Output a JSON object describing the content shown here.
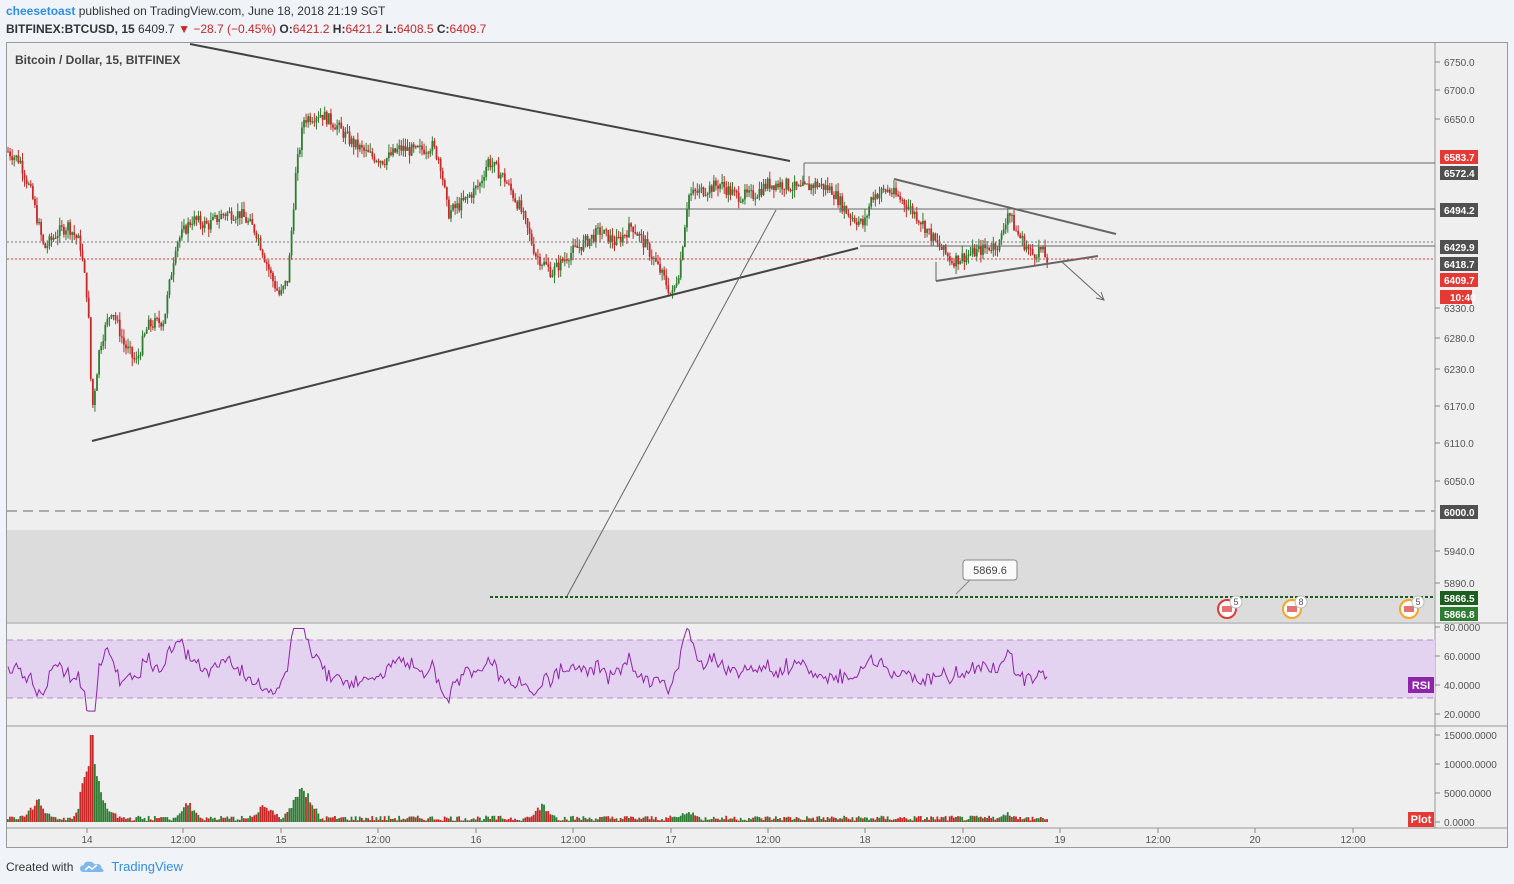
{
  "header": {
    "user": "cheesetoast",
    "published_text": "published on TradingView.com, June 18, 2018 21:19 SGT",
    "symbol": "BITFINEX:BTCUSD, 15",
    "last": "6409.7",
    "change": "−28.7 (−0.45%)",
    "o_label": "O:",
    "o_value": "6421.2",
    "h_label": "H:",
    "h_value": "6421.2",
    "l_label": "L:",
    "l_value": "6408.5",
    "c_label": "C:",
    "c_value": "6409.7"
  },
  "chart_title": "Bitcoin / Dollar, 15, BITFINEX",
  "colors": {
    "up": "#2e7d32",
    "down": "#c62828",
    "rsi": "#8e24aa",
    "rsi_band": "#e3d2f0",
    "zone": "#dcdcdc"
  },
  "chart_data": [
    {
      "type": "candlestick",
      "title": "Bitcoin / Dollar, 15, BITFINEX",
      "x_ticks": [
        "14",
        "12:00",
        "15",
        "12:00",
        "16",
        "12:00",
        "17",
        "12:00",
        "18",
        "12:00",
        "19",
        "12:00",
        "20",
        "12:00"
      ],
      "y_ticks": [
        "6750.0",
        "6700.0",
        "6650.0",
        "6330.0",
        "6280.0",
        "6230.0",
        "6170.0",
        "6110.0",
        "6050.0",
        "5940.0",
        "5890.0"
      ],
      "price_path": [
        [
          0,
          6595
        ],
        [
          12,
          6580
        ],
        [
          24,
          6520
        ],
        [
          36,
          6430
        ],
        [
          48,
          6455
        ],
        [
          60,
          6470
        ],
        [
          72,
          6440
        ],
        [
          80,
          6340
        ],
        [
          84,
          6160
        ],
        [
          92,
          6270
        ],
        [
          104,
          6330
        ],
        [
          116,
          6270
        ],
        [
          128,
          6240
        ],
        [
          140,
          6300
        ],
        [
          156,
          6310
        ],
        [
          168,
          6440
        ],
        [
          184,
          6480
        ],
        [
          200,
          6470
        ],
        [
          216,
          6490
        ],
        [
          232,
          6490
        ],
        [
          248,
          6460
        ],
        [
          256,
          6420
        ],
        [
          264,
          6380
        ],
        [
          272,
          6350
        ],
        [
          280,
          6380
        ],
        [
          288,
          6560
        ],
        [
          296,
          6650
        ],
        [
          312,
          6660
        ],
        [
          328,
          6640
        ],
        [
          344,
          6610
        ],
        [
          360,
          6590
        ],
        [
          376,
          6580
        ],
        [
          392,
          6600
        ],
        [
          408,
          6595
        ],
        [
          424,
          6605
        ],
        [
          432,
          6580
        ],
        [
          440,
          6490
        ],
        [
          456,
          6510
        ],
        [
          472,
          6540
        ],
        [
          480,
          6580
        ],
        [
          496,
          6550
        ],
        [
          512,
          6500
        ],
        [
          528,
          6420
        ],
        [
          544,
          6390
        ],
        [
          560,
          6420
        ],
        [
          576,
          6440
        ],
        [
          592,
          6460
        ],
        [
          608,
          6440
        ],
        [
          624,
          6470
        ],
        [
          640,
          6430
        ],
        [
          656,
          6380
        ],
        [
          664,
          6350
        ],
        [
          672,
          6400
        ],
        [
          680,
          6520
        ],
        [
          696,
          6530
        ],
        [
          712,
          6540
        ],
        [
          728,
          6520
        ],
        [
          744,
          6520
        ],
        [
          760,
          6540
        ],
        [
          776,
          6540
        ],
        [
          792,
          6530
        ],
        [
          808,
          6540
        ],
        [
          824,
          6530
        ],
        [
          840,
          6490
        ],
        [
          856,
          6470
        ],
        [
          864,
          6520
        ],
        [
          880,
          6530
        ],
        [
          896,
          6510
        ],
        [
          912,
          6480
        ],
        [
          928,
          6440
        ],
        [
          944,
          6410
        ],
        [
          960,
          6420
        ],
        [
          976,
          6430
        ],
        [
          992,
          6440
        ],
        [
          1000,
          6495
        ],
        [
          1008,
          6460
        ],
        [
          1016,
          6440
        ],
        [
          1024,
          6420
        ],
        [
          1032,
          6430
        ],
        [
          1040,
          6410
        ]
      ],
      "last_price": 6409.7,
      "price_labels": [
        {
          "text": "6583.7",
          "price": 6583.7,
          "color": "#e53935"
        },
        {
          "text": "6572.4",
          "price": 6572.4,
          "color": "#505050"
        },
        {
          "text": "6494.2",
          "price": 6494.2,
          "color": "#505050"
        },
        {
          "text": "6429.9",
          "price": 6429.9,
          "color": "#505050"
        },
        {
          "text": "6418.7",
          "price": 6418.7,
          "color": "#505050"
        },
        {
          "text": "6409.7",
          "price": 6409.7,
          "color": "#e53935"
        },
        {
          "text": "10:40",
          "price": 6381,
          "color": "#e53935"
        },
        {
          "text": "6000.0",
          "price": 6000,
          "color": "#505050"
        },
        {
          "text": "5866.5",
          "price": 5866.5,
          "color": "#1b5e20"
        },
        {
          "text": "5866.8",
          "price": 5843,
          "color": "#2e7d32"
        }
      ],
      "annotation": "5869.6",
      "event_badges": [
        "5",
        "8",
        "5"
      ]
    },
    {
      "type": "line",
      "series": [
        {
          "name": "RSI",
          "value_description": "oscillates between about 30 and 78"
        }
      ],
      "y_ticks": [
        "80.0000",
        "60.0000",
        "40.0000",
        "20.0000"
      ],
      "bands": [
        70,
        30
      ],
      "label": "RSI"
    },
    {
      "type": "bar",
      "series": [
        {
          "name": "Plot"
        }
      ],
      "y_ticks": [
        "15000.0000",
        "10000.0000",
        "5000.0000",
        "0.0000"
      ],
      "label": "Plot"
    }
  ],
  "footer": {
    "created_with": "Created with",
    "brand": "TradingView"
  }
}
